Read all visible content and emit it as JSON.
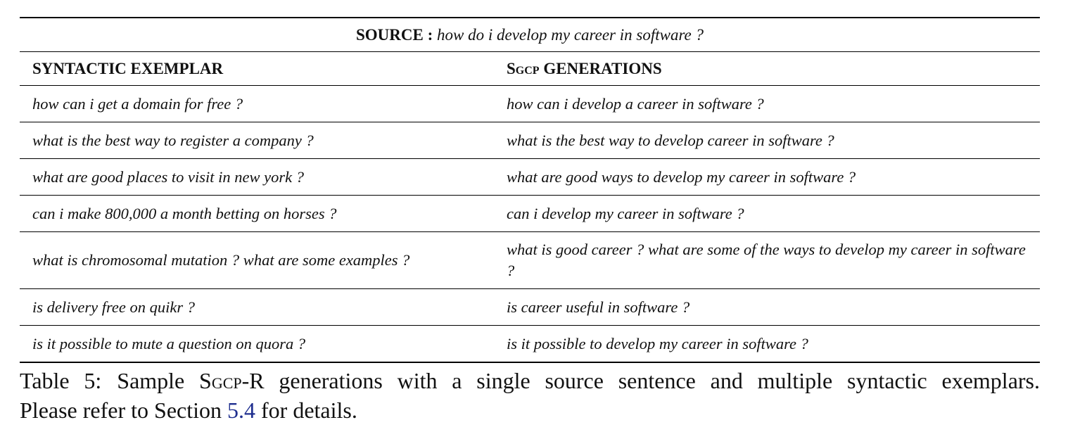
{
  "source": {
    "label": "SOURCE :",
    "text": "how do i develop my career in software ?"
  },
  "headers": {
    "exemplar": "SYNTACTIC EXEMPLAR",
    "generations_prefix": "Sgcp",
    "generations_suffix": " GENERATIONS"
  },
  "rows": [
    {
      "exemplar": "how can i get a domain for free ?",
      "generation": "how can i develop a career in software ?"
    },
    {
      "exemplar": "what is the best way to register a company ?",
      "generation": "what is the best way to develop career in software ?"
    },
    {
      "exemplar": "what are good places to visit in new york ?",
      "generation": "what are good ways to develop my career in software ?"
    },
    {
      "exemplar": "can i make 800,000 a month betting on horses ?",
      "generation": "can i develop my career in software ?"
    },
    {
      "exemplar": "what is chromosomal mutation ? what are some examples ?",
      "generation": "what is good career ? what are some of the ways to develop my career in software ?"
    },
    {
      "exemplar": "is delivery free on quikr ?",
      "generation": "is career useful in software ?"
    },
    {
      "exemplar": "is it possible to mute a question on quora ?",
      "generation": "is it possible to develop my career in software ?"
    }
  ],
  "caption": {
    "label": "Table 5:",
    "text_pre": "Sample ",
    "model": "Sgcp",
    "text_mid": "-R generations with a single source sentence and multiple syntactic exemplars.",
    "line2_pre": "Please refer to Section ",
    "section_ref": "5.4",
    "line2_post": " for details."
  },
  "colors": {
    "link": "#1f2f8f",
    "text": "#111111"
  }
}
